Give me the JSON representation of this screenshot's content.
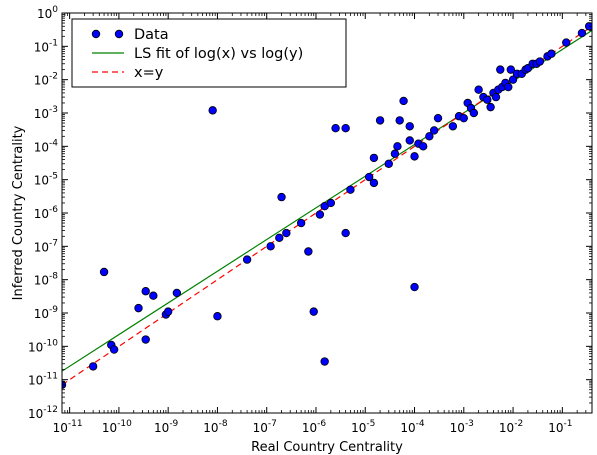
{
  "chart_data": {
    "type": "scatter",
    "xlabel": "Real Country Centrality",
    "ylabel": "Inferred Country Centrality",
    "xscale": "log",
    "yscale": "log",
    "xlim": [
      7e-12,
      0.4
    ],
    "ylim": [
      1e-12,
      1
    ],
    "x_ticks": [
      {
        "base": "10",
        "exp": "-11",
        "value": 1e-11
      },
      {
        "base": "10",
        "exp": "-10",
        "value": 1e-10
      },
      {
        "base": "10",
        "exp": "-9",
        "value": 1e-09
      },
      {
        "base": "10",
        "exp": "-8",
        "value": 1e-08
      },
      {
        "base": "10",
        "exp": "-7",
        "value": 1e-07
      },
      {
        "base": "10",
        "exp": "-6",
        "value": 1e-06
      },
      {
        "base": "10",
        "exp": "-5",
        "value": 1e-05
      },
      {
        "base": "10",
        "exp": "-4",
        "value": 0.0001
      },
      {
        "base": "10",
        "exp": "-3",
        "value": 0.001
      },
      {
        "base": "10",
        "exp": "-2",
        "value": 0.01
      },
      {
        "base": "10",
        "exp": "-1",
        "value": 0.1
      }
    ],
    "y_ticks": [
      {
        "base": "10",
        "exp": "-12",
        "value": 1e-12
      },
      {
        "base": "10",
        "exp": "-11",
        "value": 1e-11
      },
      {
        "base": "10",
        "exp": "-10",
        "value": 1e-10
      },
      {
        "base": "10",
        "exp": "-9",
        "value": 1e-09
      },
      {
        "base": "10",
        "exp": "-8",
        "value": 1e-08
      },
      {
        "base": "10",
        "exp": "-7",
        "value": 1e-07
      },
      {
        "base": "10",
        "exp": "-6",
        "value": 1e-06
      },
      {
        "base": "10",
        "exp": "-5",
        "value": 1e-05
      },
      {
        "base": "10",
        "exp": "-4",
        "value": 0.0001
      },
      {
        "base": "10",
        "exp": "-3",
        "value": 0.001
      },
      {
        "base": "10",
        "exp": "-2",
        "value": 0.01
      },
      {
        "base": "10",
        "exp": "-1",
        "value": 0.1
      },
      {
        "base": "10",
        "exp": "0",
        "value": 1
      }
    ],
    "grid": false,
    "legend_position": "top-left",
    "series": [
      {
        "name": "Data",
        "kind": "scatter",
        "color": "#0000ff",
        "edge_color": "#000000",
        "points": [
          [
            7e-12,
            7e-12
          ],
          [
            3e-11,
            2.5e-11
          ],
          [
            5e-11,
            1.7e-08
          ],
          [
            7e-11,
            1.1e-10
          ],
          [
            8e-11,
            8e-11
          ],
          [
            2.5e-10,
            1.4e-09
          ],
          [
            3.5e-10,
            4.5e-09
          ],
          [
            3.5e-10,
            1.6e-10
          ],
          [
            5e-10,
            3.3e-09
          ],
          [
            9e-10,
            9e-10
          ],
          [
            1e-09,
            1.1e-09
          ],
          [
            1.5e-09,
            4e-09
          ],
          [
            8e-09,
            0.0012
          ],
          [
            1e-08,
            8e-10
          ],
          [
            4e-08,
            4e-08
          ],
          [
            1.2e-07,
            1e-07
          ],
          [
            1.8e-07,
            1.8e-07
          ],
          [
            2e-07,
            3e-06
          ],
          [
            2.5e-07,
            2.5e-07
          ],
          [
            5e-07,
            5e-07
          ],
          [
            7e-07,
            7e-08
          ],
          [
            9e-07,
            1.1e-09
          ],
          [
            1.2e-06,
            9e-07
          ],
          [
            1.5e-06,
            3.5e-11
          ],
          [
            1.5e-06,
            1.6e-06
          ],
          [
            2e-06,
            2e-06
          ],
          [
            2.5e-06,
            0.00035
          ],
          [
            4e-06,
            0.00035
          ],
          [
            4e-06,
            2.5e-07
          ],
          [
            5e-06,
            5e-06
          ],
          [
            1.2e-05,
            1.2e-05
          ],
          [
            1.5e-05,
            4.5e-05
          ],
          [
            1.5e-05,
            8e-06
          ],
          [
            2e-05,
            0.0006
          ],
          [
            3e-05,
            3e-05
          ],
          [
            4e-05,
            6e-05
          ],
          [
            4.5e-05,
            0.0001
          ],
          [
            5e-05,
            0.0006
          ],
          [
            6e-05,
            0.0023
          ],
          [
            8e-05,
            0.0004
          ],
          [
            8e-05,
            0.00015
          ],
          [
            0.0001,
            6e-09
          ],
          [
            0.0001,
            5e-05
          ],
          [
            0.00012,
            0.00012
          ],
          [
            0.00015,
            0.0001
          ],
          [
            0.0002,
            0.0002
          ],
          [
            0.00025,
            0.0003
          ],
          [
            0.0003,
            0.0007
          ],
          [
            0.0006,
            0.0004
          ],
          [
            0.0008,
            0.0008
          ],
          [
            0.001,
            0.0007
          ],
          [
            0.0012,
            0.002
          ],
          [
            0.0014,
            0.0014
          ],
          [
            0.0016,
            0.001
          ],
          [
            0.002,
            0.005
          ],
          [
            0.0025,
            0.003
          ],
          [
            0.003,
            0.0025
          ],
          [
            0.0035,
            0.0015
          ],
          [
            0.004,
            0.004
          ],
          [
            0.0045,
            0.003
          ],
          [
            0.005,
            0.005
          ],
          [
            0.0055,
            0.02
          ],
          [
            0.006,
            0.006
          ],
          [
            0.007,
            0.008
          ],
          [
            0.008,
            0.006
          ],
          [
            0.009,
            0.02
          ],
          [
            0.01,
            0.01
          ],
          [
            0.012,
            0.015
          ],
          [
            0.015,
            0.015
          ],
          [
            0.018,
            0.02
          ],
          [
            0.02,
            0.022
          ],
          [
            0.025,
            0.03
          ],
          [
            0.03,
            0.03
          ],
          [
            0.035,
            0.035
          ],
          [
            0.05,
            0.05
          ],
          [
            0.06,
            0.06
          ],
          [
            0.12,
            0.13
          ],
          [
            0.25,
            0.25
          ],
          [
            0.35,
            0.4
          ]
        ]
      },
      {
        "name": "LS fit of log(x) vs log(y)",
        "kind": "line",
        "color": "#008000",
        "dash": "solid",
        "points": [
          [
            7e-12,
            1.8e-11
          ],
          [
            0.4,
            0.3
          ]
        ]
      },
      {
        "name": "x=y",
        "kind": "line",
        "color": "#ff0000",
        "dash": "dashed",
        "points": [
          [
            7e-12,
            7e-12
          ],
          [
            0.4,
            0.4
          ]
        ]
      }
    ]
  }
}
